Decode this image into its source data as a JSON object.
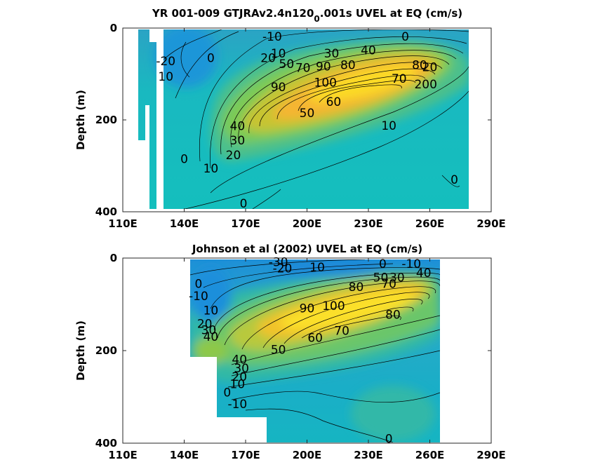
{
  "chart_data": [
    {
      "type": "contour",
      "title": "YR 001-009 GTJRAv2.4n120",
      "title_subscript": "0",
      "title_suffix": ".001s UVEL at EQ (cm/s)",
      "xlabel": "",
      "ylabel": "Depth (m)",
      "xlim": [
        110,
        290
      ],
      "ylim": [
        400,
        0
      ],
      "xticks": [
        "110E",
        "140E",
        "170E",
        "200E",
        "230E",
        "260E",
        "290E"
      ],
      "yticks": [
        "0",
        "200",
        "400"
      ],
      "core": {
        "lon": 232,
        "depth": 110,
        "max": 105
      },
      "contour_labels": [
        {
          "text": "-10",
          "lon": 183,
          "depth": 18
        },
        {
          "text": "0",
          "lon": 248,
          "depth": 18
        },
        {
          "text": "-20",
          "lon": 131,
          "depth": 72
        },
        {
          "text": "0",
          "lon": 153,
          "depth": 65
        },
        {
          "text": "10",
          "lon": 186,
          "depth": 55
        },
        {
          "text": "20",
          "lon": 181,
          "depth": 65
        },
        {
          "text": "30",
          "lon": 212,
          "depth": 55
        },
        {
          "text": "40",
          "lon": 230,
          "depth": 48
        },
        {
          "text": "10",
          "lon": 131,
          "depth": 105
        },
        {
          "text": "50",
          "lon": 190,
          "depth": 78
        },
        {
          "text": "70",
          "lon": 198,
          "depth": 86
        },
        {
          "text": "90",
          "lon": 208,
          "depth": 83
        },
        {
          "text": "80",
          "lon": 220,
          "depth": 80
        },
        {
          "text": "90",
          "lon": 186,
          "depth": 128
        },
        {
          "text": "100",
          "lon": 209,
          "depth": 118
        },
        {
          "text": "70",
          "lon": 245,
          "depth": 110
        },
        {
          "text": "80",
          "lon": 255,
          "depth": 80
        },
        {
          "text": "20",
          "lon": 260,
          "depth": 85
        },
        {
          "text": "200",
          "lon": 258,
          "depth": 122
        },
        {
          "text": "60",
          "lon": 213,
          "depth": 160
        },
        {
          "text": "50",
          "lon": 200,
          "depth": 185
        },
        {
          "text": "40",
          "lon": 166,
          "depth": 213
        },
        {
          "text": "10",
          "lon": 240,
          "depth": 212
        },
        {
          "text": "30",
          "lon": 166,
          "depth": 244
        },
        {
          "text": "20",
          "lon": 164,
          "depth": 276
        },
        {
          "text": "0",
          "lon": 140,
          "depth": 285
        },
        {
          "text": "10",
          "lon": 153,
          "depth": 305
        },
        {
          "text": "0",
          "lon": 272,
          "depth": 330
        },
        {
          "text": "0",
          "lon": 169,
          "depth": 382
        }
      ]
    },
    {
      "type": "contour",
      "title": "Johnson et al (2002) UVEL at EQ (cm/s)",
      "xlabel": "",
      "ylabel": "Depth (m)",
      "xlim": [
        110,
        290
      ],
      "ylim": [
        400,
        0
      ],
      "xticks": [
        "110E",
        "140E",
        "170E",
        "200E",
        "230E",
        "260E",
        "290E"
      ],
      "yticks": [
        "0",
        "200",
        "400"
      ],
      "core": {
        "lon": 225,
        "depth": 115,
        "max": 100
      },
      "contour_labels": [
        {
          "text": "-30",
          "lon": 186,
          "depth": 8
        },
        {
          "text": "-20",
          "lon": 188,
          "depth": 22
        },
        {
          "text": "10",
          "lon": 205,
          "depth": 20
        },
        {
          "text": "0",
          "lon": 237,
          "depth": 12
        },
        {
          "text": "-10",
          "lon": 251,
          "depth": 12
        },
        {
          "text": "0",
          "lon": 147,
          "depth": 55
        },
        {
          "text": "-10",
          "lon": 147,
          "depth": 82
        },
        {
          "text": "50",
          "lon": 236,
          "depth": 42
        },
        {
          "text": "30",
          "lon": 244,
          "depth": 42
        },
        {
          "text": "40",
          "lon": 257,
          "depth": 32
        },
        {
          "text": "70",
          "lon": 240,
          "depth": 55
        },
        {
          "text": "80",
          "lon": 224,
          "depth": 62
        },
        {
          "text": "10",
          "lon": 153,
          "depth": 113
        },
        {
          "text": "20",
          "lon": 150,
          "depth": 142
        },
        {
          "text": "30",
          "lon": 152,
          "depth": 155
        },
        {
          "text": "40",
          "lon": 153,
          "depth": 170
        },
        {
          "text": "90",
          "lon": 200,
          "depth": 108
        },
        {
          "text": "100",
          "lon": 213,
          "depth": 103
        },
        {
          "text": "80",
          "lon": 242,
          "depth": 122
        },
        {
          "text": "70",
          "lon": 217,
          "depth": 157
        },
        {
          "text": "60",
          "lon": 204,
          "depth": 172
        },
        {
          "text": "50",
          "lon": 186,
          "depth": 198
        },
        {
          "text": "40",
          "lon": 167,
          "depth": 219
        },
        {
          "text": "30",
          "lon": 168,
          "depth": 238
        },
        {
          "text": "20",
          "lon": 167,
          "depth": 256
        },
        {
          "text": "10",
          "lon": 166,
          "depth": 272
        },
        {
          "text": "0",
          "lon": 161,
          "depth": 290
        },
        {
          "text": "-10",
          "lon": 166,
          "depth": 315
        },
        {
          "text": "0",
          "lon": 240,
          "depth": 390
        }
      ]
    }
  ]
}
